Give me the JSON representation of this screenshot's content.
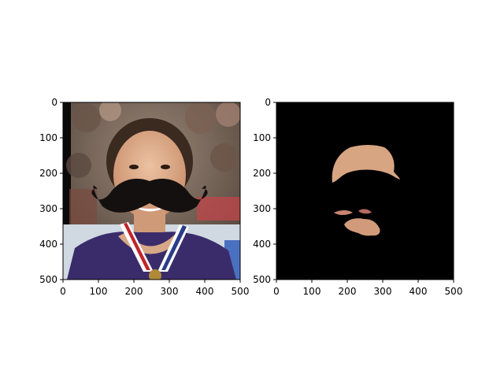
{
  "figure": {
    "panels": [
      {
        "subject": "photo of a smiling girl with a medal ribbon, dark mustache overlay",
        "x_ticks": [
          "0",
          "100",
          "200",
          "300",
          "400",
          "500"
        ],
        "y_ticks": [
          "0",
          "100",
          "200",
          "300",
          "400",
          "500"
        ],
        "xlim": [
          0,
          500
        ],
        "ylim": [
          0,
          500
        ]
      },
      {
        "subject": "segmentation mask showing only forehead and mouth/chin skin regions on black",
        "x_ticks": [
          "0",
          "100",
          "200",
          "300",
          "400",
          "500"
        ],
        "y_ticks": [
          "0",
          "100",
          "200",
          "300",
          "400",
          "500"
        ],
        "xlim": [
          0,
          500
        ],
        "ylim": [
          0,
          500
        ]
      }
    ]
  },
  "colors": {
    "mask_background": "#000000",
    "skin": "#d8a582",
    "mustache": "#141010",
    "dress": "#3a2c6a",
    "ribbon_red": "#c0262a",
    "ribbon_blue": "#2a3d8a"
  }
}
